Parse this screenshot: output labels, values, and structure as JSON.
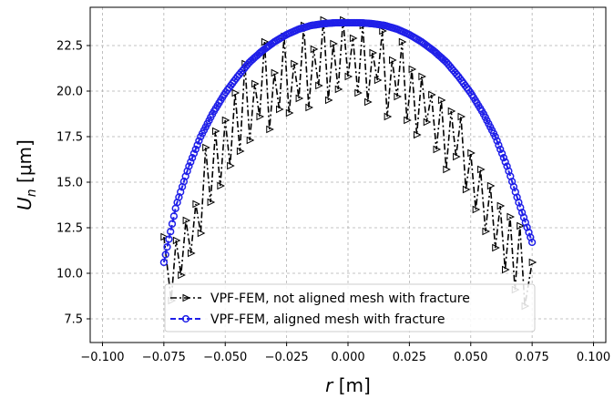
{
  "chart_data": {
    "type": "line",
    "title": "",
    "xlabel_symbol": "r",
    "xlabel_unit": "[m]",
    "ylabel_symbol": "U",
    "ylabel_sub": "n",
    "ylabel_unit": "[μm]",
    "xlim": [
      -0.105,
      0.105
    ],
    "ylim": [
      6.2,
      24.6
    ],
    "xticks": [
      -0.1,
      -0.075,
      -0.05,
      -0.025,
      0.0,
      0.025,
      0.05,
      0.075,
      0.1
    ],
    "xtick_labels": [
      "−0.100",
      "−0.075",
      "−0.050",
      "−0.025",
      "0.000",
      "0.025",
      "0.050",
      "0.075",
      "0.100"
    ],
    "yticks": [
      7.5,
      10.0,
      12.5,
      15.0,
      17.5,
      20.0,
      22.5
    ],
    "ytick_labels": [
      "7.5",
      "10.0",
      "12.5",
      "15.0",
      "17.5",
      "20.0",
      "22.5"
    ],
    "grid": true,
    "legend_position": "lower-center",
    "series": [
      {
        "name": "VPF-FEM, not aligned mesh with fracture",
        "color": "#000000",
        "marker": "triangle-right",
        "x": [
          -0.075,
          -0.072,
          -0.07,
          -0.068,
          -0.066,
          -0.064,
          -0.062,
          -0.06,
          -0.058,
          -0.056,
          -0.054,
          -0.052,
          -0.05,
          -0.048,
          -0.046,
          -0.044,
          -0.042,
          -0.04,
          -0.038,
          -0.036,
          -0.034,
          -0.032,
          -0.03,
          -0.028,
          -0.026,
          -0.024,
          -0.022,
          -0.02,
          -0.018,
          -0.016,
          -0.014,
          -0.012,
          -0.01,
          -0.008,
          -0.006,
          -0.004,
          -0.002,
          0.0,
          0.002,
          0.004,
          0.006,
          0.008,
          0.01,
          0.012,
          0.014,
          0.016,
          0.018,
          0.02,
          0.022,
          0.024,
          0.026,
          0.028,
          0.03,
          0.032,
          0.034,
          0.036,
          0.038,
          0.04,
          0.042,
          0.044,
          0.046,
          0.048,
          0.05,
          0.052,
          0.054,
          0.056,
          0.058,
          0.06,
          0.062,
          0.064,
          0.066,
          0.068,
          0.07,
          0.072,
          0.075
        ],
        "y": [
          12.0,
          8.5,
          11.8,
          9.9,
          12.9,
          11.1,
          13.8,
          12.2,
          16.9,
          13.9,
          17.8,
          14.8,
          18.4,
          15.9,
          19.9,
          16.7,
          21.5,
          17.3,
          20.4,
          18.6,
          22.7,
          17.9,
          21.0,
          19.0,
          23.0,
          18.8,
          21.5,
          19.6,
          23.6,
          19.1,
          22.3,
          20.3,
          23.9,
          19.5,
          22.6,
          20.1,
          23.9,
          20.8,
          22.9,
          19.9,
          23.6,
          19.4,
          22.1,
          20.6,
          23.3,
          18.6,
          21.7,
          19.7,
          22.7,
          18.4,
          21.2,
          17.6,
          20.8,
          18.3,
          19.8,
          16.8,
          19.5,
          15.7,
          18.9,
          16.4,
          18.6,
          14.6,
          16.6,
          13.5,
          15.7,
          12.3,
          14.8,
          11.4,
          13.7,
          10.2,
          13.1,
          9.1,
          12.6,
          8.2,
          10.6
        ]
      },
      {
        "name": "VPF-FEM, aligned mesh with fracture",
        "color": "#1f1fe8",
        "marker": "circle",
        "peak": 23.75,
        "x": [
          -0.075,
          -0.07,
          -0.065,
          -0.06,
          -0.055,
          -0.05,
          -0.045,
          -0.04,
          -0.035,
          -0.03,
          -0.025,
          -0.02,
          -0.015,
          -0.01,
          -0.005,
          0.0,
          0.005,
          0.01,
          0.015,
          0.02,
          0.025,
          0.03,
          0.035,
          0.04,
          0.045,
          0.05,
          0.055,
          0.06,
          0.065,
          0.07,
          0.075
        ],
        "y": [
          10.6,
          13.7,
          15.8,
          17.5,
          18.8,
          19.9,
          20.8,
          21.6,
          22.2,
          22.7,
          23.1,
          23.4,
          23.6,
          23.7,
          23.75,
          23.75,
          23.75,
          23.7,
          23.6,
          23.4,
          23.1,
          22.7,
          22.2,
          21.6,
          20.8,
          19.9,
          18.8,
          17.5,
          15.8,
          13.7,
          11.7
        ]
      }
    ]
  }
}
